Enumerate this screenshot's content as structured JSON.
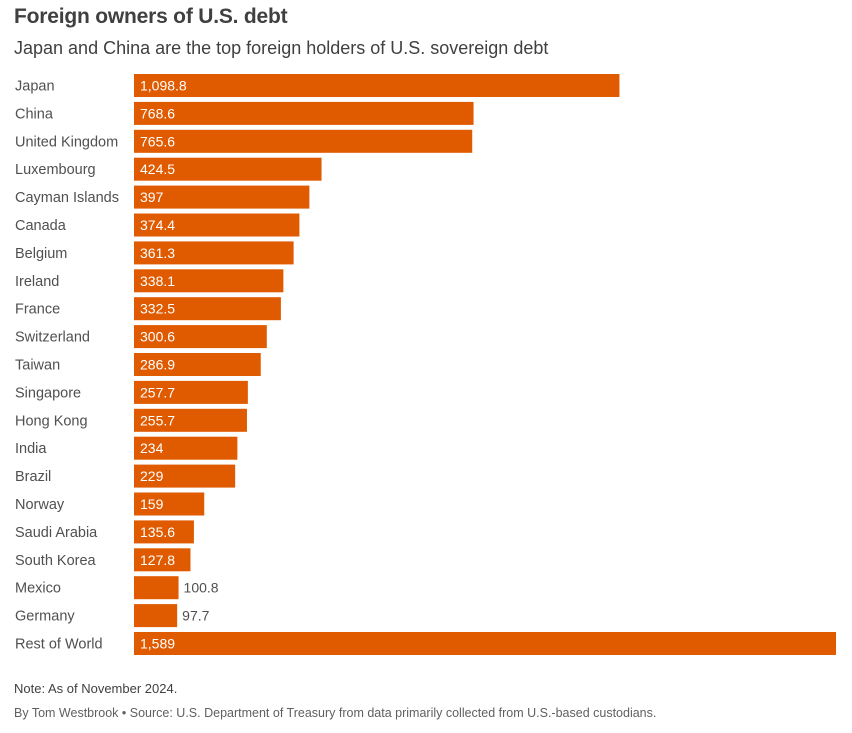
{
  "title": "Foreign owners of U.S. debt",
  "subtitle": "Japan and China are the top foreign holders of U.S. sovereign debt",
  "note": "Note: As of November 2024.",
  "byline": "By Tom Westbrook • Source: U.S. Department of Treasury from data primarily collected from U.S.-based custodians.",
  "colors": {
    "bar": "#e05a00"
  },
  "chart_data": {
    "type": "bar",
    "orientation": "horizontal",
    "categories": [
      "Japan",
      "China",
      "United Kingdom",
      "Luxembourg",
      "Cayman Islands",
      "Canada",
      "Belgium",
      "Ireland",
      "France",
      "Switzerland",
      "Taiwan",
      "Singapore",
      "Hong Kong",
      "India",
      "Brazil",
      "Norway",
      "Saudi Arabia",
      "South Korea",
      "Mexico",
      "Germany",
      "Rest of World"
    ],
    "values": [
      1098.8,
      768.6,
      765.6,
      424.5,
      397,
      374.4,
      361.3,
      338.1,
      332.5,
      300.6,
      286.9,
      257.7,
      255.7,
      234,
      229,
      159,
      135.6,
      127.8,
      100.8,
      97.7,
      1589
    ],
    "value_labels": [
      "1,098.8",
      "768.6",
      "765.6",
      "424.5",
      "397",
      "374.4",
      "361.3",
      "338.1",
      "332.5",
      "300.6",
      "286.9",
      "257.7",
      "255.7",
      "234",
      "229",
      "159",
      "135.6",
      "127.8",
      "100.8",
      "97.7",
      "1,589"
    ],
    "title": "Foreign owners of U.S. debt",
    "xlabel": "",
    "ylabel": "",
    "xlim": [
      0,
      1589
    ],
    "grid": false,
    "legend": "none"
  }
}
